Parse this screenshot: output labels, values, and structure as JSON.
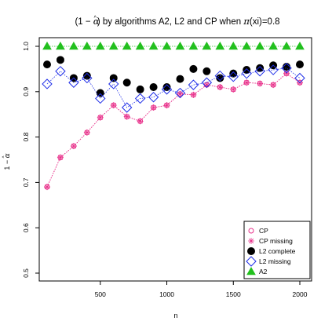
{
  "chart_data": {
    "type": "scatter",
    "title": "(1 − α̂) by algorithms A2, L2 and CP when π(xi)=0.8",
    "title_parts": {
      "pre": "(1 − ",
      "alpha": "α",
      "hat": "^",
      "post": ") by algorithms A2, L2 and CP when ",
      "pi": "π",
      "post2": "(xi)=0.8"
    },
    "xlabel": "n",
    "ylabel": "1 − α̂",
    "ylabel_parts": {
      "pre": "1 − ",
      "alpha": "α",
      "hat": "^"
    },
    "xlim": [
      100,
      2000
    ],
    "ylim": [
      0.5,
      1.0
    ],
    "x_ticks": [
      500,
      1000,
      1500,
      2000
    ],
    "y_ticks": [
      0.5,
      0.6,
      0.7,
      0.8,
      0.9,
      1.0
    ],
    "x_tick_labels": [
      "500",
      "1000",
      "1500",
      "2000"
    ],
    "y_tick_labels": [
      "0.5",
      "0.6",
      "0.7",
      "0.8",
      "0.9",
      "1.0"
    ],
    "x": [
      100,
      200,
      300,
      400,
      500,
      600,
      700,
      800,
      900,
      1000,
      1100,
      1200,
      1300,
      1400,
      1500,
      1600,
      1700,
      1800,
      1900,
      2000
    ],
    "legend_position": "bottom-right",
    "grid": false,
    "series": [
      {
        "name": "CP",
        "marker": "open-circle",
        "color": "#e8308a",
        "connected": true,
        "values": [
          0.69,
          0.755,
          0.78,
          0.81,
          0.843,
          0.87,
          0.845,
          0.835,
          0.865,
          0.87,
          0.895,
          0.893,
          0.915,
          0.91,
          0.905,
          0.92,
          0.918,
          0.915,
          0.94,
          0.92
        ]
      },
      {
        "name": "CP missing",
        "marker": "star",
        "color": "#e8308a",
        "connected": true,
        "values": [
          0.69,
          0.755,
          0.78,
          0.81,
          0.843,
          0.87,
          0.845,
          0.835,
          0.865,
          0.87,
          0.895,
          0.893,
          0.915,
          0.91,
          0.905,
          0.92,
          0.918,
          0.915,
          0.94,
          0.92
        ]
      },
      {
        "name": "L2 complete",
        "marker": "filled-circle",
        "color": "#000000",
        "connected": false,
        "values": [
          0.96,
          0.97,
          0.93,
          0.935,
          0.897,
          0.93,
          0.92,
          0.905,
          0.91,
          0.91,
          0.928,
          0.95,
          0.945,
          0.93,
          0.94,
          0.948,
          0.952,
          0.958,
          0.955,
          0.96
        ]
      },
      {
        "name": "L2 missing",
        "marker": "open-diamond",
        "color": "#1f2ee8",
        "connected": true,
        "values": [
          0.917,
          0.945,
          0.92,
          0.93,
          0.885,
          0.917,
          0.865,
          0.885,
          0.888,
          0.905,
          0.897,
          0.915,
          0.92,
          0.935,
          0.933,
          0.94,
          0.945,
          0.948,
          0.952,
          0.93
        ]
      },
      {
        "name": "A2",
        "marker": "filled-triangle",
        "color": "#22c01e",
        "connected": true,
        "values": [
          1.0,
          1.0,
          1.0,
          1.0,
          1.0,
          1.0,
          1.0,
          1.0,
          1.0,
          1.0,
          1.0,
          1.0,
          1.0,
          1.0,
          1.0,
          1.0,
          1.0,
          1.0,
          1.0,
          1.0
        ]
      }
    ]
  }
}
